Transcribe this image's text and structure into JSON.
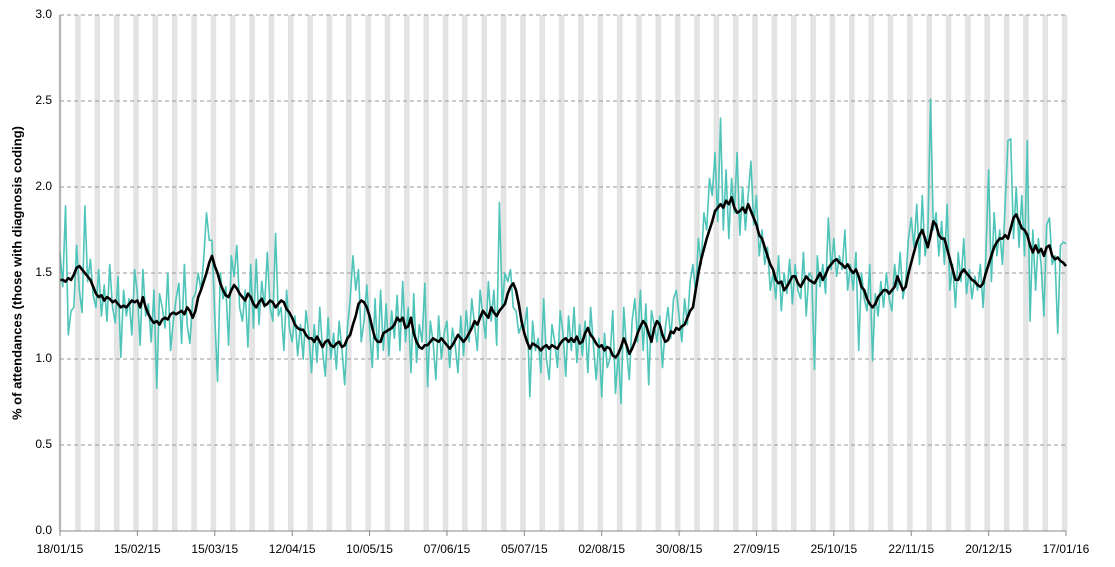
{
  "chart_data": {
    "type": "line",
    "y_label": "% of attendances (those with diagnosis coding)",
    "x": [
      "18/01/15",
      "19/01/15",
      "20/01/15",
      "21/01/15",
      "22/01/15",
      "23/01/15",
      "24/01/15",
      "25/01/15",
      "26/01/15",
      "27/01/15",
      "28/01/15",
      "29/01/15",
      "30/01/15",
      "31/01/15",
      "01/02/15",
      "02/02/15",
      "03/02/15",
      "04/02/15",
      "05/02/15",
      "06/02/15",
      "07/02/15",
      "08/02/15",
      "09/02/15",
      "10/02/15",
      "11/02/15",
      "12/02/15",
      "13/02/15",
      "14/02/15",
      "15/02/15",
      "16/02/15",
      "17/02/15",
      "18/02/15",
      "19/02/15",
      "20/02/15",
      "21/02/15",
      "22/02/15",
      "23/02/15",
      "24/02/15",
      "25/02/15",
      "26/02/15",
      "27/02/15",
      "28/02/15",
      "01/03/15",
      "02/03/15",
      "03/03/15",
      "04/03/15",
      "05/03/15",
      "06/03/15",
      "07/03/15",
      "08/03/15",
      "09/03/15",
      "10/03/15",
      "11/03/15",
      "12/03/15",
      "13/03/15",
      "14/03/15",
      "15/03/15",
      "16/03/15",
      "17/03/15",
      "18/03/15",
      "19/03/15",
      "20/03/15",
      "21/03/15",
      "22/03/15",
      "23/03/15",
      "24/03/15",
      "25/03/15",
      "26/03/15",
      "27/03/15",
      "28/03/15",
      "29/03/15",
      "30/03/15",
      "31/03/15",
      "01/04/15",
      "02/04/15",
      "03/04/15",
      "04/04/15",
      "05/04/15",
      "06/04/15",
      "07/04/15",
      "08/04/15",
      "09/04/15",
      "10/04/15",
      "11/04/15",
      "12/04/15",
      "13/04/15",
      "14/04/15",
      "15/04/15",
      "16/04/15",
      "17/04/15",
      "18/04/15",
      "19/04/15",
      "20/04/15",
      "21/04/15",
      "22/04/15",
      "23/04/15",
      "24/04/15",
      "25/04/15",
      "26/04/15",
      "27/04/15",
      "28/04/15",
      "29/04/15",
      "30/04/15",
      "01/05/15",
      "02/05/15",
      "03/05/15",
      "04/05/15",
      "05/05/15",
      "06/05/15",
      "07/05/15",
      "08/05/15",
      "09/05/15",
      "10/05/15",
      "11/05/15",
      "12/05/15",
      "13/05/15",
      "14/05/15",
      "15/05/15",
      "16/05/15",
      "17/05/15",
      "18/05/15",
      "19/05/15",
      "20/05/15",
      "21/05/15",
      "22/05/15",
      "23/05/15",
      "24/05/15",
      "25/05/15",
      "26/05/15",
      "27/05/15",
      "28/05/15",
      "29/05/15",
      "30/05/15",
      "31/05/15",
      "01/06/15",
      "02/06/15",
      "03/06/15",
      "04/06/15",
      "05/06/15",
      "06/06/15",
      "07/06/15",
      "08/06/15",
      "09/06/15",
      "10/06/15",
      "11/06/15",
      "12/06/15",
      "13/06/15",
      "14/06/15",
      "15/06/15",
      "16/06/15",
      "17/06/15",
      "18/06/15",
      "19/06/15",
      "20/06/15",
      "21/06/15",
      "22/06/15",
      "23/06/15",
      "24/06/15",
      "25/06/15",
      "26/06/15",
      "27/06/15",
      "28/06/15",
      "29/06/15",
      "30/06/15",
      "01/07/15",
      "02/07/15",
      "03/07/15",
      "04/07/15",
      "05/07/15",
      "06/07/15",
      "07/07/15",
      "08/07/15",
      "09/07/15",
      "10/07/15",
      "11/07/15",
      "12/07/15",
      "13/07/15",
      "14/07/15",
      "15/07/15",
      "16/07/15",
      "17/07/15",
      "18/07/15",
      "19/07/15",
      "20/07/15",
      "21/07/15",
      "22/07/15",
      "23/07/15",
      "24/07/15",
      "25/07/15",
      "26/07/15",
      "27/07/15",
      "28/07/15",
      "29/07/15",
      "30/07/15",
      "31/07/15",
      "01/08/15",
      "02/08/15",
      "03/08/15",
      "04/08/15",
      "05/08/15",
      "06/08/15",
      "07/08/15",
      "08/08/15",
      "09/08/15",
      "10/08/15",
      "11/08/15",
      "12/08/15",
      "13/08/15",
      "14/08/15",
      "15/08/15",
      "16/08/15",
      "17/08/15",
      "18/08/15",
      "19/08/15",
      "20/08/15",
      "21/08/15",
      "22/08/15",
      "23/08/15",
      "24/08/15",
      "25/08/15",
      "26/08/15",
      "27/08/15",
      "28/08/15",
      "29/08/15",
      "30/08/15",
      "31/08/15",
      "01/09/15",
      "02/09/15",
      "03/09/15",
      "04/09/15",
      "05/09/15",
      "06/09/15",
      "07/09/15",
      "08/09/15",
      "09/09/15",
      "10/09/15",
      "11/09/15",
      "12/09/15",
      "13/09/15",
      "14/09/15",
      "15/09/15",
      "16/09/15",
      "17/09/15",
      "18/09/15",
      "19/09/15",
      "20/09/15",
      "21/09/15",
      "22/09/15",
      "23/09/15",
      "24/09/15",
      "25/09/15",
      "26/09/15",
      "27/09/15",
      "28/09/15",
      "29/09/15",
      "30/09/15",
      "01/10/15",
      "02/10/15",
      "03/10/15",
      "04/10/15",
      "05/10/15",
      "06/10/15",
      "07/10/15",
      "08/10/15",
      "09/10/15",
      "10/10/15",
      "11/10/15",
      "12/10/15",
      "13/10/15",
      "14/10/15",
      "15/10/15",
      "16/10/15",
      "17/10/15",
      "18/10/15",
      "19/10/15",
      "20/10/15",
      "21/10/15",
      "22/10/15",
      "23/10/15",
      "24/10/15",
      "25/10/15",
      "26/10/15",
      "27/10/15",
      "28/10/15",
      "29/10/15",
      "30/10/15",
      "31/10/15",
      "01/11/15",
      "02/11/15",
      "03/11/15",
      "04/11/15",
      "05/11/15",
      "06/11/15",
      "07/11/15",
      "08/11/15",
      "09/11/15",
      "10/11/15",
      "11/11/15",
      "12/11/15",
      "13/11/15",
      "14/11/15",
      "15/11/15",
      "16/11/15",
      "17/11/15",
      "18/11/15",
      "19/11/15",
      "20/11/15",
      "21/11/15",
      "22/11/15",
      "23/11/15",
      "24/11/15",
      "25/11/15",
      "26/11/15",
      "27/11/15",
      "28/11/15",
      "29/11/15",
      "30/11/15",
      "01/12/15",
      "02/12/15",
      "03/12/15",
      "04/12/15",
      "05/12/15",
      "06/12/15",
      "07/12/15",
      "08/12/15",
      "09/12/15",
      "10/12/15",
      "11/12/15",
      "12/12/15",
      "13/12/15",
      "14/12/15",
      "15/12/15",
      "16/12/15",
      "17/12/15",
      "18/12/15",
      "19/12/15",
      "20/12/15",
      "21/12/15",
      "22/12/15",
      "23/12/15",
      "24/12/15",
      "25/12/15",
      "26/12/15",
      "27/12/15",
      "28/12/15",
      "29/12/15",
      "30/12/15",
      "31/12/15",
      "01/01/16",
      "02/01/16",
      "03/01/16",
      "04/01/16",
      "05/01/16",
      "06/01/16",
      "07/01/16",
      "08/01/16",
      "09/01/16",
      "10/01/16",
      "11/01/16",
      "12/01/16",
      "13/01/16",
      "14/01/16",
      "15/01/16",
      "16/01/16",
      "17/01/16"
    ],
    "series": [
      {
        "color": "#4fc4b9",
        "width": 1.6,
        "values": [
          1.62,
          1.42,
          1.89,
          1.14,
          1.28,
          1.3,
          1.66,
          1.4,
          1.27,
          1.89,
          1.45,
          1.58,
          1.37,
          1.3,
          1.52,
          1.25,
          1.43,
          1.22,
          1.55,
          1.3,
          1.21,
          1.48,
          1.01,
          1.4,
          1.25,
          1.35,
          1.14,
          1.52,
          1.38,
          1.08,
          1.52,
          1.25,
          1.32,
          1.1,
          1.4,
          0.83,
          1.38,
          1.3,
          1.18,
          1.5,
          1.05,
          1.22,
          1.35,
          1.44,
          1.09,
          1.55,
          1.2,
          1.09,
          1.35,
          1.38,
          1.5,
          1.4,
          1.58,
          1.85,
          1.69,
          1.69,
          1.25,
          0.87,
          1.5,
          1.35,
          1.42,
          1.08,
          1.6,
          1.48,
          1.66,
          1.3,
          1.22,
          1.4,
          1.07,
          1.55,
          1.18,
          1.58,
          1.2,
          1.45,
          1.3,
          1.62,
          1.3,
          1.22,
          1.73,
          1.25,
          1.3,
          1.05,
          1.4,
          1.18,
          1.1,
          1.25,
          1.02,
          1.2,
          1.0,
          1.28,
          1.15,
          0.92,
          1.2,
          0.98,
          1.3,
          1.05,
          0.9,
          1.24,
          1.0,
          1.15,
          0.94,
          1.22,
          1.06,
          0.85,
          1.18,
          1.35,
          1.6,
          1.4,
          1.52,
          1.1,
          1.22,
          1.43,
          1.18,
          0.95,
          1.35,
          1.0,
          1.4,
          1.05,
          1.32,
          1.02,
          1.28,
          1.12,
          1.37,
          1.05,
          1.45,
          1.1,
          1.3,
          0.92,
          1.38,
          0.98,
          1.2,
          1.1,
          1.44,
          0.84,
          1.22,
          1.1,
          0.88,
          1.25,
          1.0,
          1.15,
          1.22,
          0.95,
          1.18,
          1.08,
          0.92,
          1.25,
          1.02,
          1.28,
          1.1,
          1.35,
          1.2,
          1.05,
          1.4,
          1.25,
          1.12,
          1.45,
          1.22,
          1.4,
          1.08,
          1.91,
          1.3,
          1.5,
          1.45,
          1.52,
          1.3,
          1.28,
          1.15,
          1.2,
          1.18,
          1.3,
          0.78,
          1.22,
          1.05,
          1.12,
          0.92,
          1.35,
          1.0,
          0.88,
          1.2,
          1.1,
          0.95,
          1.28,
          1.15,
          0.9,
          1.25,
          1.05,
          1.3,
          0.98,
          1.2,
          1.02,
          1.22,
          0.92,
          1.3,
          1.08,
          0.88,
          1.12,
          0.78,
          1.15,
          0.95,
          1.0,
          1.28,
          0.8,
          1.05,
          0.74,
          1.3,
          1.05,
          0.88,
          1.22,
          1.35,
          1.1,
          1.4,
          1.05,
          1.32,
          0.85,
          1.28,
          1.2,
          1.1,
          1.25,
          0.95,
          1.18,
          1.3,
          1.12,
          1.35,
          1.4,
          1.25,
          1.1,
          1.35,
          1.2,
          1.45,
          1.55,
          1.38,
          1.7,
          1.55,
          1.85,
          1.75,
          2.05,
          1.95,
          2.2,
          1.8,
          2.4,
          1.75,
          2.1,
          1.7,
          2.05,
          1.85,
          2.2,
          1.72,
          2.0,
          1.75,
          1.95,
          2.15,
          1.78,
          1.95,
          1.6,
          1.75,
          1.55,
          1.65,
          1.4,
          1.5,
          1.35,
          1.6,
          1.28,
          1.5,
          1.38,
          1.58,
          1.32,
          1.55,
          1.4,
          1.35,
          1.62,
          1.25,
          1.5,
          1.48,
          0.94,
          1.6,
          1.42,
          1.55,
          1.38,
          1.82,
          1.52,
          1.7,
          1.48,
          1.6,
          1.52,
          1.75,
          1.4,
          1.55,
          1.4,
          1.62,
          1.05,
          1.5,
          1.35,
          1.28,
          1.55,
          0.99,
          1.38,
          1.25,
          1.45,
          1.3,
          1.5,
          1.35,
          1.28,
          1.55,
          1.4,
          1.62,
          1.35,
          1.45,
          1.7,
          1.82,
          1.65,
          1.9,
          1.55,
          1.95,
          1.6,
          1.72,
          2.51,
          1.75,
          1.85,
          1.6,
          1.8,
          1.55,
          1.9,
          1.4,
          1.55,
          1.3,
          1.62,
          1.45,
          1.7,
          1.38,
          1.52,
          1.35,
          1.48,
          1.4,
          1.55,
          1.3,
          1.6,
          2.1,
          1.45,
          1.85,
          1.6,
          1.75,
          1.55,
          1.9,
          2.27,
          2.28,
          1.7,
          2.0,
          1.65,
          1.95,
          1.6,
          2.27,
          1.22,
          1.75,
          1.4,
          1.7,
          1.55,
          1.25,
          1.78,
          1.82,
          1.55,
          1.6,
          1.15,
          1.66,
          1.68,
          1.67
        ]
      },
      {
        "color": "#000000",
        "width": 2.6,
        "values": [
          1.46,
          1.46,
          1.45,
          1.47,
          1.46,
          1.49,
          1.53,
          1.54,
          1.52,
          1.5,
          1.48,
          1.46,
          1.42,
          1.38,
          1.36,
          1.37,
          1.34,
          1.36,
          1.35,
          1.33,
          1.34,
          1.32,
          1.3,
          1.31,
          1.3,
          1.32,
          1.34,
          1.33,
          1.34,
          1.3,
          1.36,
          1.3,
          1.26,
          1.23,
          1.21,
          1.22,
          1.2,
          1.23,
          1.24,
          1.23,
          1.26,
          1.27,
          1.26,
          1.27,
          1.28,
          1.26,
          1.3,
          1.28,
          1.24,
          1.28,
          1.36,
          1.4,
          1.45,
          1.5,
          1.56,
          1.6,
          1.54,
          1.5,
          1.44,
          1.4,
          1.37,
          1.36,
          1.4,
          1.43,
          1.41,
          1.38,
          1.36,
          1.34,
          1.38,
          1.36,
          1.32,
          1.3,
          1.33,
          1.35,
          1.31,
          1.32,
          1.34,
          1.33,
          1.3,
          1.32,
          1.34,
          1.33,
          1.29,
          1.27,
          1.24,
          1.2,
          1.18,
          1.17,
          1.17,
          1.14,
          1.12,
          1.12,
          1.1,
          1.13,
          1.1,
          1.07,
          1.1,
          1.11,
          1.08,
          1.07,
          1.09,
          1.1,
          1.07,
          1.08,
          1.12,
          1.14,
          1.2,
          1.25,
          1.32,
          1.34,
          1.33,
          1.3,
          1.25,
          1.18,
          1.12,
          1.1,
          1.1,
          1.15,
          1.16,
          1.17,
          1.18,
          1.2,
          1.24,
          1.22,
          1.24,
          1.18,
          1.19,
          1.24,
          1.15,
          1.1,
          1.07,
          1.06,
          1.08,
          1.08,
          1.1,
          1.12,
          1.11,
          1.1,
          1.12,
          1.1,
          1.08,
          1.06,
          1.08,
          1.11,
          1.14,
          1.12,
          1.1,
          1.12,
          1.15,
          1.18,
          1.22,
          1.2,
          1.24,
          1.28,
          1.26,
          1.24,
          1.3,
          1.27,
          1.25,
          1.28,
          1.3,
          1.32,
          1.38,
          1.42,
          1.44,
          1.4,
          1.32,
          1.22,
          1.15,
          1.1,
          1.06,
          1.09,
          1.08,
          1.07,
          1.05,
          1.07,
          1.08,
          1.06,
          1.08,
          1.07,
          1.06,
          1.09,
          1.11,
          1.12,
          1.1,
          1.12,
          1.1,
          1.13,
          1.09,
          1.1,
          1.15,
          1.18,
          1.14,
          1.12,
          1.09,
          1.07,
          1.08,
          1.05,
          1.07,
          1.06,
          1.02,
          1.01,
          1.03,
          1.07,
          1.12,
          1.08,
          1.03,
          1.06,
          1.1,
          1.15,
          1.19,
          1.22,
          1.2,
          1.15,
          1.1,
          1.18,
          1.22,
          1.2,
          1.14,
          1.1,
          1.11,
          1.16,
          1.15,
          1.18,
          1.17,
          1.19,
          1.2,
          1.24,
          1.28,
          1.3,
          1.4,
          1.5,
          1.58,
          1.64,
          1.7,
          1.75,
          1.8,
          1.86,
          1.88,
          1.9,
          1.88,
          1.92,
          1.9,
          1.94,
          1.88,
          1.85,
          1.86,
          1.88,
          1.85,
          1.9,
          1.86,
          1.82,
          1.78,
          1.72,
          1.7,
          1.65,
          1.6,
          1.55,
          1.52,
          1.46,
          1.44,
          1.45,
          1.4,
          1.42,
          1.45,
          1.48,
          1.48,
          1.44,
          1.42,
          1.45,
          1.48,
          1.46,
          1.45,
          1.44,
          1.47,
          1.5,
          1.46,
          1.49,
          1.53,
          1.55,
          1.57,
          1.58,
          1.56,
          1.55,
          1.53,
          1.55,
          1.52,
          1.5,
          1.52,
          1.48,
          1.42,
          1.4,
          1.35,
          1.32,
          1.3,
          1.32,
          1.36,
          1.38,
          1.4,
          1.4,
          1.38,
          1.4,
          1.42,
          1.48,
          1.44,
          1.4,
          1.42,
          1.5,
          1.56,
          1.62,
          1.68,
          1.72,
          1.75,
          1.7,
          1.65,
          1.72,
          1.8,
          1.78,
          1.72,
          1.7,
          1.7,
          1.64,
          1.58,
          1.52,
          1.46,
          1.46,
          1.5,
          1.52,
          1.5,
          1.48,
          1.46,
          1.45,
          1.43,
          1.42,
          1.44,
          1.5,
          1.55,
          1.6,
          1.65,
          1.68,
          1.7,
          1.7,
          1.72,
          1.7,
          1.76,
          1.82,
          1.84,
          1.8,
          1.76,
          1.75,
          1.72,
          1.66,
          1.62,
          1.66,
          1.62,
          1.64,
          1.6,
          1.65,
          1.66,
          1.6,
          1.58,
          1.59,
          1.57,
          1.56,
          1.54
        ]
      }
    ],
    "xlim": [
      "18/01/15",
      "17/01/16"
    ],
    "xticks": [
      "18/01/15",
      "15/02/15",
      "15/03/15",
      "12/04/15",
      "10/05/15",
      "07/06/15",
      "05/07/15",
      "02/08/15",
      "30/08/15",
      "27/09/15",
      "25/10/15",
      "22/11/15",
      "20/12/15",
      "17/01/16"
    ],
    "ylim": [
      0,
      3
    ],
    "yticks": [
      {
        "value": 0,
        "label": "0.0"
      },
      0.5,
      {
        "value": 1,
        "label": "1.0"
      },
      1.5,
      {
        "value": 2,
        "label": "2.0"
      },
      2.5,
      {
        "value": 3,
        "label": "3.0"
      }
    ],
    "grid": true,
    "weekend_shading": true
  }
}
